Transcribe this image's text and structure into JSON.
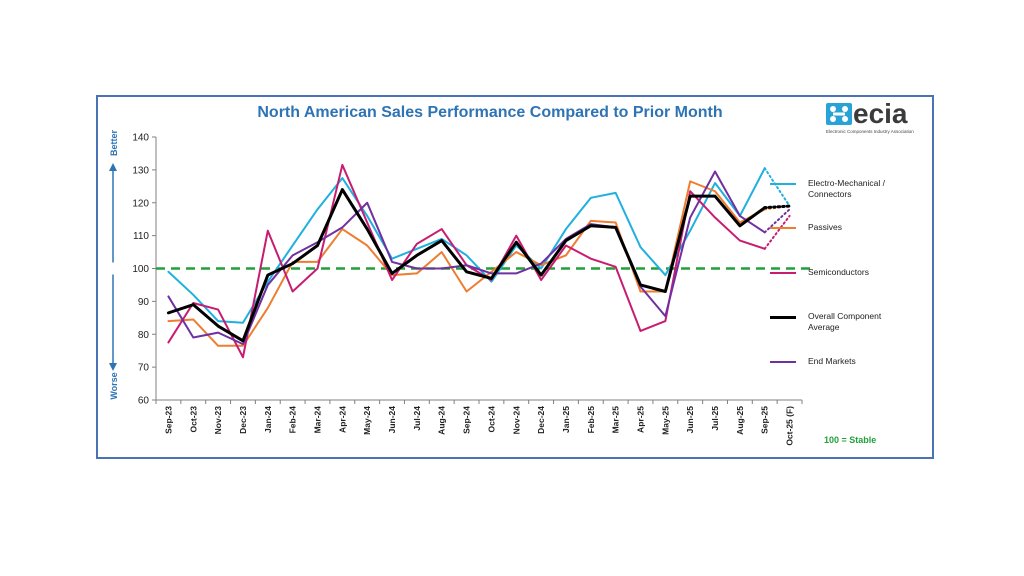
{
  "chart_data": {
    "type": "line",
    "title": "North American Sales Performance Compared to Prior Month",
    "categories": [
      "Sep-23",
      "Oct-23",
      "Nov-23",
      "Dec-23",
      "Jan-24",
      "Feb-24",
      "Mar-24",
      "Apr-24",
      "May-24",
      "Jun-24",
      "Jul-24",
      "Aug-24",
      "Sep-24",
      "Oct-24",
      "Nov-24",
      "Dec-24",
      "Jan-25",
      "Feb-25",
      "Mar-25",
      "Apr-25",
      "May-25",
      "Jun-25",
      "Jul-25",
      "Aug-25",
      "Sep-25",
      "Oct-25 (F)"
    ],
    "ylim": [
      60,
      140
    ],
    "yticks": [
      60,
      70,
      80,
      90,
      100,
      110,
      120,
      130,
      140
    ],
    "reference_line": {
      "value": 100,
      "color": "#22a03c",
      "label": "100 = Stable"
    },
    "y_direction_labels": {
      "up": "Better",
      "down": "Worse"
    },
    "legend_position": "right",
    "grid": false,
    "series": [
      {
        "name": "Electro-Mechanical / Connectors",
        "color": "#1fb0e0",
        "width": 2,
        "values": [
          99,
          92,
          84,
          83.5,
          96,
          107,
          118,
          127.5,
          116,
          103,
          106,
          109,
          104,
          96,
          107,
          100,
          112,
          121.5,
          123,
          106.5,
          98,
          111.5,
          126,
          116,
          130.5,
          119
        ]
      },
      {
        "name": "Passives",
        "color": "#ed7d31",
        "width": 2,
        "values": [
          84,
          84.5,
          76.5,
          76.5,
          88,
          102,
          102,
          112,
          107,
          98,
          98.5,
          105,
          93,
          99,
          105,
          101,
          104,
          114.5,
          114,
          93,
          93,
          126.5,
          123.5,
          114,
          118,
          119
        ]
      },
      {
        "name": "Semiconductors",
        "color": "#c71c72",
        "width": 2,
        "values": [
          77.5,
          89.5,
          87.5,
          73,
          111.5,
          93,
          100,
          131.5,
          114,
          96.5,
          107.5,
          112,
          101,
          96.5,
          110,
          96.5,
          107,
          103,
          100.5,
          81,
          84,
          123.5,
          115.5,
          108.5,
          106,
          116
        ]
      },
      {
        "name": "Overall Component Average",
        "color": "#000000",
        "width": 3,
        "values": [
          86.5,
          89,
          82.5,
          78,
          98,
          101.5,
          107,
          124,
          112,
          98.5,
          104,
          108.5,
          99,
          97,
          108,
          98,
          108.5,
          113,
          112.5,
          95,
          93,
          122,
          122,
          113,
          118.5,
          119
        ]
      },
      {
        "name": "End Markets",
        "color": "#7030a0",
        "width": 2,
        "values": [
          91.5,
          79,
          80.5,
          77,
          95,
          104,
          108,
          112.5,
          120,
          102,
          100,
          100,
          101,
          98.5,
          98.5,
          101.5,
          109,
          113.5,
          112.5,
          94.5,
          85.5,
          115.5,
          129.5,
          116,
          111,
          118
        ]
      }
    ],
    "forecast_segment": {
      "from": "Sep-25",
      "to": "Oct-25 (F)",
      "style": "dotted"
    }
  },
  "logo": {
    "wordmark": "ecia",
    "subtitle": "Electronic Components Industry Association"
  },
  "legend": {
    "items": [
      {
        "label_line1": "Electro-Mechanical /",
        "label_line2": "Connectors"
      },
      {
        "label_line1": "Passives",
        "label_line2": ""
      },
      {
        "label_line1": "Semiconductors",
        "label_line2": ""
      },
      {
        "label_line1": "Overall Component",
        "label_line2": "Average"
      },
      {
        "label_line1": "End Markets",
        "label_line2": ""
      }
    ]
  }
}
